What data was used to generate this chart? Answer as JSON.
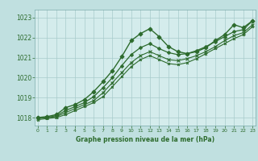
{
  "title": "Graphe pression niveau de la mer (hPa)",
  "bg_color": "#c0e0e0",
  "plot_bg_color": "#d4ecec",
  "grid_color": "#a8cccc",
  "line_color": "#2d6b2d",
  "x_ticks": [
    0,
    1,
    2,
    3,
    4,
    5,
    6,
    7,
    8,
    9,
    10,
    11,
    12,
    13,
    14,
    15,
    16,
    17,
    18,
    19,
    20,
    21,
    22,
    23
  ],
  "xlim": [
    -0.3,
    23.3
  ],
  "ylim": [
    1017.6,
    1023.4
  ],
  "y_ticks": [
    1018,
    1019,
    1020,
    1021,
    1022,
    1023
  ],
  "series": [
    {
      "x": [
        0,
        1,
        2,
        3,
        4,
        5,
        6,
        7,
        8,
        9,
        10,
        11,
        12,
        13,
        14,
        15,
        16,
        17,
        18,
        19,
        20,
        21,
        22,
        23
      ],
      "y": [
        1018.0,
        1018.05,
        1018.15,
        1018.5,
        1018.65,
        1018.9,
        1019.3,
        1019.8,
        1020.35,
        1021.05,
        1021.85,
        1022.2,
        1022.45,
        1022.05,
        1021.55,
        1021.3,
        1021.2,
        1021.3,
        1021.5,
        1021.85,
        1022.15,
        1022.65,
        1022.5,
        1022.85
      ],
      "marker": "D",
      "linestyle": "-",
      "linewidth": 1.0,
      "markersize": 2.5
    },
    {
      "x": [
        0,
        1,
        2,
        3,
        4,
        5,
        6,
        7,
        8,
        9,
        10,
        11,
        12,
        13,
        14,
        15,
        16,
        17,
        18,
        19,
        20,
        21,
        22,
        23
      ],
      "y": [
        1018.0,
        1018.0,
        1018.1,
        1018.35,
        1018.55,
        1018.75,
        1019.05,
        1019.5,
        1020.0,
        1020.6,
        1021.15,
        1021.5,
        1021.7,
        1021.45,
        1021.25,
        1021.15,
        1021.2,
        1021.35,
        1021.55,
        1021.8,
        1022.05,
        1022.3,
        1022.4,
        1022.85
      ],
      "marker": "P",
      "linestyle": "-",
      "linewidth": 0.9,
      "markersize": 2.5
    },
    {
      "x": [
        0,
        1,
        2,
        3,
        4,
        5,
        6,
        7,
        8,
        9,
        10,
        11,
        12,
        13,
        14,
        15,
        16,
        17,
        18,
        19,
        20,
        21,
        22,
        23
      ],
      "y": [
        1017.95,
        1018.0,
        1018.05,
        1018.25,
        1018.45,
        1018.65,
        1018.85,
        1019.25,
        1019.75,
        1020.25,
        1020.75,
        1021.1,
        1021.3,
        1021.1,
        1020.9,
        1020.85,
        1020.95,
        1021.1,
        1021.3,
        1021.55,
        1021.85,
        1022.1,
        1022.25,
        1022.65
      ],
      "marker": "x",
      "linestyle": "-",
      "linewidth": 0.8,
      "markersize": 2.5
    },
    {
      "x": [
        0,
        1,
        2,
        3,
        4,
        5,
        6,
        7,
        8,
        9,
        10,
        11,
        12,
        13,
        14,
        15,
        16,
        17,
        18,
        19,
        20,
        21,
        22,
        23
      ],
      "y": [
        1017.9,
        1017.95,
        1018.0,
        1018.15,
        1018.35,
        1018.55,
        1018.75,
        1019.05,
        1019.55,
        1020.05,
        1020.55,
        1020.9,
        1021.1,
        1020.9,
        1020.7,
        1020.65,
        1020.75,
        1020.95,
        1021.2,
        1021.45,
        1021.7,
        1021.95,
        1022.15,
        1022.55
      ],
      "marker": "x",
      "linestyle": "-",
      "linewidth": 0.8,
      "markersize": 2.0
    }
  ]
}
